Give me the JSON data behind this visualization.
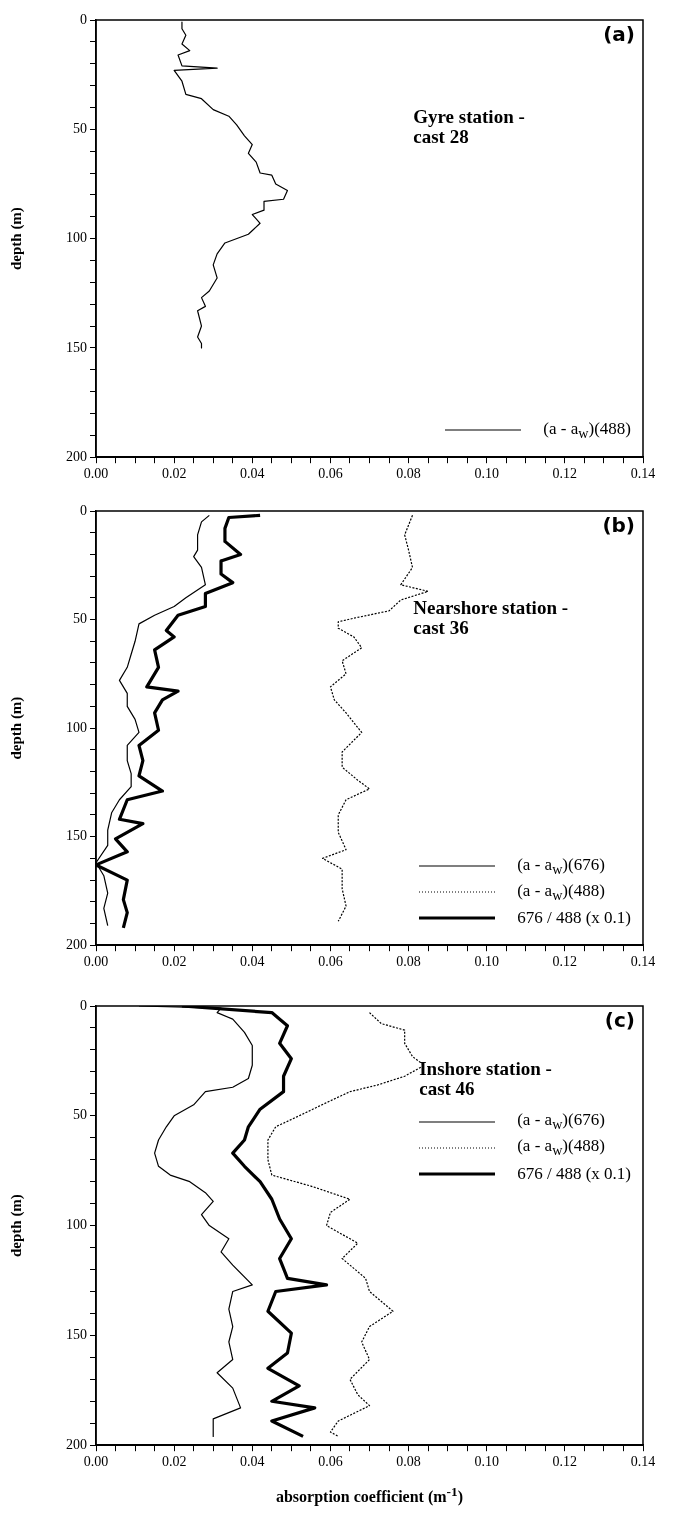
{
  "chart_data": [
    {
      "type": "line",
      "title": "(a)",
      "subtitle": "Gyre station -\ncast 28",
      "ylabel": "depth (m)",
      "legend": "bottom right",
      "marker": "none",
      "xlim": [
        0,
        0.14
      ],
      "xticks": [
        {
          "value": 0,
          "label": "0.00"
        },
        {
          "value": 0.005,
          "label": null
        },
        {
          "value": 0.01,
          "label": null
        },
        {
          "value": 0.015,
          "label": null
        },
        {
          "value": 0.02,
          "label": "0.02"
        },
        {
          "value": 0.025,
          "label": null
        },
        {
          "value": 0.03,
          "label": null
        },
        {
          "value": 0.035,
          "label": null
        },
        {
          "value": 0.04,
          "label": "0.04"
        },
        {
          "value": 0.045,
          "label": null
        },
        {
          "value": 0.05,
          "label": null
        },
        {
          "value": 0.055,
          "label": null
        },
        {
          "value": 0.06,
          "label": "0.06"
        },
        {
          "value": 0.065,
          "label": null
        },
        {
          "value": 0.07,
          "label": null
        },
        {
          "value": 0.075,
          "label": null
        },
        {
          "value": 0.08,
          "label": "0.08"
        },
        {
          "value": 0.085,
          "label": null
        },
        {
          "value": 0.09,
          "label": null
        },
        {
          "value": 0.095,
          "label": null
        },
        {
          "value": 0.1,
          "label": "0.10"
        },
        {
          "value": 0.105,
          "label": null
        },
        {
          "value": 0.11,
          "label": null
        },
        {
          "value": 0.115,
          "label": null
        },
        {
          "value": 0.12,
          "label": "0.12"
        },
        {
          "value": 0.125,
          "label": null
        },
        {
          "value": 0.13,
          "label": null
        },
        {
          "value": 0.135,
          "label": null
        },
        {
          "value": 0.14,
          "label": "0.14"
        }
      ],
      "ylim": [
        200,
        0
      ],
      "yticks": [
        0,
        {
          "value": 10,
          "label": null
        },
        {
          "value": 20,
          "label": null
        },
        {
          "value": 30,
          "label": null
        },
        {
          "value": 40,
          "label": null
        },
        50,
        {
          "value": 60,
          "label": null
        },
        {
          "value": 70,
          "label": null
        },
        {
          "value": 80,
          "label": null
        },
        {
          "value": 90,
          "label": null
        },
        100,
        {
          "value": 110,
          "label": null
        },
        {
          "value": 120,
          "label": null
        },
        {
          "value": 130,
          "label": null
        },
        {
          "value": 140,
          "label": null
        },
        150,
        {
          "value": 160,
          "label": null
        },
        {
          "value": 170,
          "label": null
        },
        {
          "value": 180,
          "label": null
        },
        {
          "value": 190,
          "label": null
        },
        200
      ],
      "series": [
        {
          "name": "(a - a$_{w}$)(488)",
          "color": "#000000",
          "line_style": "solid",
          "x": [
            0.022,
            0.022,
            0.023,
            0.022,
            0.024,
            0.021,
            0.022,
            0.031,
            0.02,
            0.022,
            0.023,
            0.027,
            0.03,
            0.034,
            0.036,
            0.038,
            0.04,
            0.039,
            0.041,
            0.042,
            0.045,
            0.046,
            0.049,
            0.048,
            0.043,
            0.043,
            0.04,
            0.042,
            0.039,
            0.033,
            0.031,
            0.03,
            0.031,
            0.029,
            0.027,
            0.028,
            0.026,
            0.027,
            0.026,
            0.027,
            0.027
          ],
          "values": [
            1,
            4,
            7,
            11,
            14,
            16,
            21,
            22,
            23,
            28,
            34,
            36,
            41,
            44,
            48,
            53,
            57,
            61,
            65,
            70,
            71,
            75,
            78,
            82,
            83,
            87,
            89,
            93,
            98,
            102,
            107,
            112,
            118,
            124,
            127,
            131,
            133,
            140,
            145,
            148,
            150
          ]
        }
      ]
    },
    {
      "type": "line",
      "title": "(b)",
      "subtitle": "Nearshore station -\ncast 36",
      "ylabel": "depth (m)",
      "legend": "bottom right",
      "marker": "none",
      "xlim": [
        0,
        0.14
      ],
      "xticks": [
        {
          "value": 0,
          "label": "0.00"
        },
        {
          "value": 0.005,
          "label": null
        },
        {
          "value": 0.01,
          "label": null
        },
        {
          "value": 0.015,
          "label": null
        },
        {
          "value": 0.02,
          "label": "0.02"
        },
        {
          "value": 0.025,
          "label": null
        },
        {
          "value": 0.03,
          "label": null
        },
        {
          "value": 0.035,
          "label": null
        },
        {
          "value": 0.04,
          "label": "0.04"
        },
        {
          "value": 0.045,
          "label": null
        },
        {
          "value": 0.05,
          "label": null
        },
        {
          "value": 0.055,
          "label": null
        },
        {
          "value": 0.06,
          "label": "0.06"
        },
        {
          "value": 0.065,
          "label": null
        },
        {
          "value": 0.07,
          "label": null
        },
        {
          "value": 0.075,
          "label": null
        },
        {
          "value": 0.08,
          "label": "0.08"
        },
        {
          "value": 0.085,
          "label": null
        },
        {
          "value": 0.09,
          "label": null
        },
        {
          "value": 0.095,
          "label": null
        },
        {
          "value": 0.1,
          "label": "0.10"
        },
        {
          "value": 0.105,
          "label": null
        },
        {
          "value": 0.11,
          "label": null
        },
        {
          "value": 0.115,
          "label": null
        },
        {
          "value": 0.12,
          "label": "0.12"
        },
        {
          "value": 0.125,
          "label": null
        },
        {
          "value": 0.13,
          "label": null
        },
        {
          "value": 0.135,
          "label": null
        },
        {
          "value": 0.14,
          "label": "0.14"
        }
      ],
      "ylim": [
        200,
        0
      ],
      "yticks": [
        0,
        {
          "value": 10,
          "label": null
        },
        {
          "value": 20,
          "label": null
        },
        {
          "value": 30,
          "label": null
        },
        {
          "value": 40,
          "label": null
        },
        50,
        {
          "value": 60,
          "label": null
        },
        {
          "value": 70,
          "label": null
        },
        {
          "value": 80,
          "label": null
        },
        {
          "value": 90,
          "label": null
        },
        100,
        {
          "value": 110,
          "label": null
        },
        {
          "value": 120,
          "label": null
        },
        {
          "value": 130,
          "label": null
        },
        {
          "value": 140,
          "label": null
        },
        150,
        {
          "value": 160,
          "label": null
        },
        {
          "value": 170,
          "label": null
        },
        {
          "value": 180,
          "label": null
        },
        {
          "value": 190,
          "label": null
        },
        200
      ],
      "series": [
        {
          "name": "(a - a$_{w}$)(676)",
          "color": "#000000",
          "line_style": "solid",
          "x": [
            0.029,
            0.027,
            0.026,
            0.026,
            0.025,
            0.027,
            0.028,
            0.023,
            0.02,
            0.015,
            0.011,
            0.01,
            0.009,
            0.008,
            0.006,
            0.008,
            0.008,
            0.01,
            0.011,
            0.008,
            0.008,
            0.009,
            0.009,
            0.006,
            0.004,
            0.003,
            0.003,
            0,
            0.002,
            0.003,
            0.002,
            0.003
          ],
          "values": [
            2,
            5,
            11,
            18,
            21,
            26,
            34,
            40,
            44,
            48,
            52,
            60,
            66,
            72,
            78,
            84,
            90,
            96,
            102,
            108,
            115,
            121,
            127,
            133,
            139,
            147,
            154,
            162,
            168,
            176,
            183,
            191
          ]
        },
        {
          "name": "(a - a$_{w}$)(488)",
          "color": "#000000",
          "line_style": "dotted",
          "x": [
            0.081,
            0.079,
            0.08,
            0.081,
            0.078,
            0.085,
            0.078,
            0.075,
            0.067,
            0.062,
            0.062,
            0.066,
            0.068,
            0.063,
            0.064,
            0.06,
            0.061,
            0.064,
            0.068,
            0.063,
            0.063,
            0.067,
            0.07,
            0.064,
            0.062,
            0.062,
            0.064,
            0.058,
            0.063,
            0.063,
            0.064,
            0.062
          ],
          "values": [
            2,
            11,
            18,
            26,
            34,
            37,
            41,
            46,
            49,
            51,
            54,
            58,
            63,
            69,
            75,
            81,
            87,
            93,
            102,
            111,
            118,
            124,
            128,
            133,
            140,
            148,
            156,
            160,
            165,
            174,
            182,
            189
          ]
        },
        {
          "name": "676 / 488 (x 0.1)",
          "color": "#000000",
          "line_style": "solid",
          "x": [
            0.042,
            0.034,
            0.033,
            0.033,
            0.037,
            0.032,
            0.032,
            0.035,
            0.028,
            0.028,
            0.021,
            0.018,
            0.02,
            0.015,
            0.016,
            0.013,
            0.021,
            0.017,
            0.015,
            0.016,
            0.011,
            0.012,
            0.011,
            0.017,
            0.008,
            0.006,
            0.012,
            0.005,
            0.008,
            0,
            0.008,
            0.007,
            0.008,
            0.007
          ],
          "values": [
            2,
            3,
            8,
            14,
            20,
            23,
            29,
            33,
            38,
            44,
            48,
            55,
            58,
            64,
            72,
            81,
            83,
            87,
            93,
            101,
            108,
            115,
            122,
            129,
            133,
            142,
            144,
            151,
            157,
            163,
            170,
            179,
            185,
            192
          ]
        }
      ]
    },
    {
      "type": "line",
      "title": "(c)",
      "subtitle": "Inshore station -\ncast 46",
      "xlabel": "absorption coefficient (m$^{-1}$)",
      "ylabel": "depth (m)",
      "legend": "right",
      "marker": "none",
      "xlim": [
        0,
        0.14
      ],
      "xticks": [
        {
          "value": 0,
          "label": "0.00"
        },
        {
          "value": 0.005,
          "label": null
        },
        {
          "value": 0.01,
          "label": null
        },
        {
          "value": 0.015,
          "label": null
        },
        {
          "value": 0.02,
          "label": "0.02"
        },
        {
          "value": 0.025,
          "label": null
        },
        {
          "value": 0.03,
          "label": null
        },
        {
          "value": 0.035,
          "label": null
        },
        {
          "value": 0.04,
          "label": "0.04"
        },
        {
          "value": 0.045,
          "label": null
        },
        {
          "value": 0.05,
          "label": null
        },
        {
          "value": 0.055,
          "label": null
        },
        {
          "value": 0.06,
          "label": "0.06"
        },
        {
          "value": 0.065,
          "label": null
        },
        {
          "value": 0.07,
          "label": null
        },
        {
          "value": 0.075,
          "label": null
        },
        {
          "value": 0.08,
          "label": "0.08"
        },
        {
          "value": 0.085,
          "label": null
        },
        {
          "value": 0.09,
          "label": null
        },
        {
          "value": 0.095,
          "label": null
        },
        {
          "value": 0.1,
          "label": "0.10"
        },
        {
          "value": 0.105,
          "label": null
        },
        {
          "value": 0.11,
          "label": null
        },
        {
          "value": 0.115,
          "label": null
        },
        {
          "value": 0.12,
          "label": "0.12"
        },
        {
          "value": 0.125,
          "label": null
        },
        {
          "value": 0.13,
          "label": null
        },
        {
          "value": 0.135,
          "label": null
        },
        {
          "value": 0.14,
          "label": "0.14"
        }
      ],
      "ylim": [
        200,
        0
      ],
      "yticks": [
        0,
        {
          "value": 10,
          "label": null
        },
        {
          "value": 20,
          "label": null
        },
        {
          "value": 30,
          "label": null
        },
        {
          "value": 40,
          "label": null
        },
        50,
        {
          "value": 60,
          "label": null
        },
        {
          "value": 70,
          "label": null
        },
        {
          "value": 80,
          "label": null
        },
        {
          "value": 90,
          "label": null
        },
        100,
        {
          "value": 110,
          "label": null
        },
        {
          "value": 120,
          "label": null
        },
        {
          "value": 130,
          "label": null
        },
        {
          "value": 140,
          "label": null
        },
        150,
        {
          "value": 160,
          "label": null
        },
        {
          "value": 170,
          "label": null
        },
        {
          "value": 180,
          "label": null
        },
        {
          "value": 190,
          "label": null
        },
        200
      ],
      "series": [
        {
          "name": "(a - a$_{w}$)(676)",
          "color": "#000000",
          "line_style": "solid",
          "x": [
            0.011,
            0.032,
            0.031,
            0.035,
            0.038,
            0.04,
            0.04,
            0.039,
            0.035,
            0.028,
            0.025,
            0.02,
            0.018,
            0.016,
            0.015,
            0.016,
            0.019,
            0.024,
            0.028,
            0.03,
            0.027,
            0.029,
            0.034,
            0.032,
            0.035,
            0.04,
            0.035,
            0.034,
            0.035,
            0.034,
            0.035,
            0.031,
            0.035,
            0.037,
            0.03,
            0.03
          ],
          "values": [
            0,
            1,
            3,
            6,
            12,
            18,
            27,
            33,
            37,
            39,
            45,
            50,
            55,
            61,
            67,
            73,
            77,
            80,
            85,
            89,
            95,
            100,
            106,
            112,
            118,
            127,
            130,
            138,
            146,
            153,
            161,
            167,
            174,
            183,
            188,
            196
          ]
        },
        {
          "name": "(a - a$_{w}$)(488)",
          "color": "#000000",
          "line_style": "dotted",
          "x": [
            0.07,
            0.073,
            0.079,
            0.079,
            0.081,
            0.084,
            0.079,
            0.072,
            0.065,
            0.059,
            0.052,
            0.046,
            0.044,
            0.044,
            0.045,
            0.055,
            0.065,
            0.06,
            0.059,
            0.067,
            0.063,
            0.069,
            0.07,
            0.074,
            0.076,
            0.07,
            0.068,
            0.07,
            0.065,
            0.067,
            0.07,
            0.062,
            0.06,
            0.062
          ],
          "values": [
            3,
            8,
            11,
            17,
            23,
            27,
            32,
            36,
            39,
            44,
            50,
            55,
            61,
            70,
            77,
            82,
            88,
            94,
            100,
            108,
            115,
            124,
            130,
            136,
            139,
            146,
            153,
            161,
            170,
            177,
            182,
            189,
            194,
            196
          ]
        },
        {
          "name": "676 / 488 (x 0.1)",
          "color": "#000000",
          "line_style": "solid",
          "x": [
            0.022,
            0.045,
            0.049,
            0.047,
            0.05,
            0.048,
            0.048,
            0.042,
            0.039,
            0.038,
            0.035,
            0.038,
            0.042,
            0.045,
            0.047,
            0.05,
            0.047,
            0.049,
            0.059,
            0.046,
            0.044,
            0.05,
            0.049,
            0.044,
            0.052,
            0.045,
            0.056,
            0.045,
            0.053
          ],
          "values": [
            0,
            3,
            9,
            17,
            24,
            32,
            39,
            47,
            55,
            61,
            67,
            73,
            80,
            88,
            97,
            106,
            115,
            124,
            127,
            130,
            139,
            149,
            158,
            165,
            173,
            180,
            183,
            189,
            196
          ]
        }
      ]
    }
  ]
}
